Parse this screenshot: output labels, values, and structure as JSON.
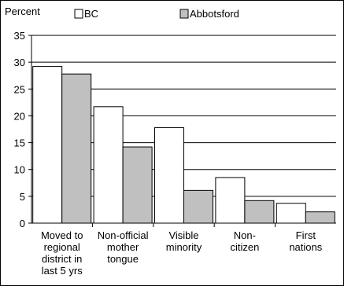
{
  "chart_data": {
    "type": "bar",
    "ylabel": "Percent",
    "ylim": [
      0,
      35
    ],
    "yticks": [
      0,
      5,
      10,
      15,
      20,
      25,
      30,
      35
    ],
    "grid": true,
    "legend_position": "top",
    "categories": [
      [
        "Moved to",
        "regional",
        "district in",
        "last 5 yrs"
      ],
      [
        "Non-official",
        "mother",
        "tongue"
      ],
      [
        "Visible",
        "minority"
      ],
      [
        "Non-",
        "citizen"
      ],
      [
        "First",
        "nations"
      ]
    ],
    "series": [
      {
        "name": "BC",
        "color": "#ffffff",
        "values": [
          29.2,
          21.7,
          17.8,
          8.5,
          3.7
        ]
      },
      {
        "name": "Abbotsford",
        "color": "#c0c0c0",
        "values": [
          27.8,
          14.2,
          6.1,
          4.2,
          2.1
        ]
      }
    ]
  }
}
